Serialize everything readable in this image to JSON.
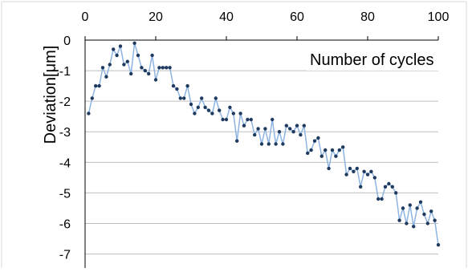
{
  "chart_data": {
    "type": "line",
    "title": "",
    "xlabel": "Number of cycles",
    "ylabel": "Deviation[μm]",
    "x_axis_position": "top",
    "xlim": [
      0,
      100
    ],
    "ylim": [
      -7.3,
      0
    ],
    "x_ticks": [
      0,
      20,
      40,
      60,
      80,
      100
    ],
    "y_ticks": [
      0,
      -1,
      -2,
      -3,
      -4,
      -5,
      -6,
      -7
    ],
    "grid": "horizontal",
    "legend": "none",
    "colors": {
      "line": "#8db4e2",
      "marker": "#1f3a5f",
      "grid": "#bfbfbf",
      "axis": "#000000"
    },
    "series": [
      {
        "x": [
          1,
          2,
          3,
          4,
          5,
          6,
          7,
          8,
          9,
          10,
          11,
          12,
          13,
          14,
          15,
          16,
          17,
          18,
          19,
          20,
          21,
          22,
          23,
          24,
          25,
          26,
          27,
          28,
          29,
          30,
          31,
          32,
          33,
          34,
          35,
          36,
          37,
          38,
          39,
          40,
          41,
          42,
          43,
          44,
          45,
          46,
          47,
          48,
          49,
          50,
          51,
          52,
          53,
          54,
          55,
          56,
          57,
          58,
          59,
          60,
          61,
          62,
          63,
          64,
          65,
          66,
          67,
          68,
          69,
          70,
          71,
          72,
          73,
          74,
          75,
          76,
          77,
          78,
          79,
          80,
          81,
          82,
          83,
          84,
          85,
          86,
          87,
          88,
          89,
          90,
          91,
          92,
          93,
          94,
          95,
          96,
          97,
          98,
          99,
          100
        ],
        "values": [
          -2.4,
          -1.9,
          -1.5,
          -1.5,
          -0.9,
          -1.2,
          -0.8,
          -0.3,
          -0.5,
          -0.2,
          -0.8,
          -0.7,
          -1.1,
          -0.1,
          -0.5,
          -0.9,
          -1.0,
          -1.1,
          -0.5,
          -1.3,
          -0.9,
          -0.9,
          -0.9,
          -0.9,
          -1.5,
          -1.6,
          -1.9,
          -1.9,
          -1.5,
          -2.1,
          -2.4,
          -2.2,
          -1.9,
          -2.2,
          -2.3,
          -2.4,
          -1.9,
          -2.3,
          -2.6,
          -2.6,
          -2.2,
          -2.4,
          -3.3,
          -2.4,
          -2.8,
          -2.6,
          -2.6,
          -3.1,
          -2.9,
          -3.4,
          -2.9,
          -3.4,
          -2.6,
          -3.4,
          -3.0,
          -3.4,
          -2.8,
          -2.9,
          -3.0,
          -2.8,
          -3.1,
          -2.8,
          -3.7,
          -3.6,
          -3.3,
          -3.2,
          -3.8,
          -3.6,
          -4.2,
          -3.6,
          -3.8,
          -3.6,
          -3.5,
          -4.4,
          -4.2,
          -4.3,
          -4.2,
          -4.8,
          -4.3,
          -4.4,
          -4.3,
          -4.5,
          -5.2,
          -5.2,
          -4.8,
          -4.7,
          -4.8,
          -5.0,
          -5.9,
          -5.5,
          -6.0,
          -5.4,
          -6.1,
          -5.5,
          -5.3,
          -5.7,
          -6.0,
          -5.6,
          -5.9,
          -6.7
        ]
      }
    ]
  }
}
